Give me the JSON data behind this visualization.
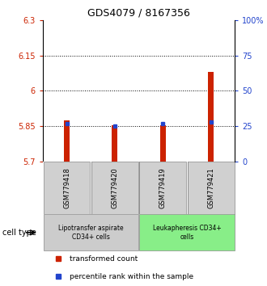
{
  "title": "GDS4079 / 8167356",
  "samples": [
    "GSM779418",
    "GSM779420",
    "GSM779419",
    "GSM779421"
  ],
  "red_values": [
    5.875,
    5.855,
    5.855,
    6.08
  ],
  "blue_percentiles": [
    27,
    25,
    27,
    28
  ],
  "ylim_left": [
    5.7,
    6.3
  ],
  "ylim_right": [
    0,
    100
  ],
  "yticks_left": [
    5.7,
    5.85,
    6.0,
    6.15,
    6.3
  ],
  "ytick_labels_left": [
    "5.7",
    "5.85",
    "6",
    "6.15",
    "6.3"
  ],
  "yticks_right": [
    0,
    25,
    50,
    75,
    100
  ],
  "ytick_labels_right": [
    "0",
    "25",
    "50",
    "75",
    "100%"
  ],
  "grid_lines": [
    5.85,
    6.0,
    6.15
  ],
  "bar_bottom": 5.7,
  "bar_width": 0.12,
  "red_color": "#cc2200",
  "blue_color": "#2244cc",
  "group1_label": "Lipotransfer aspirate\nCD34+ cells",
  "group2_label": "Leukapheresis CD34+\ncells",
  "group1_samples": [
    0,
    1
  ],
  "group2_samples": [
    2,
    3
  ],
  "group1_bg": "#cccccc",
  "group2_bg": "#88ee88",
  "cell_type_label": "cell type",
  "legend_red": "transformed count",
  "legend_blue": "percentile rank within the sample",
  "title_fontsize": 9,
  "label_fontsize": 6,
  "tick_fontsize": 7,
  "legend_fontsize": 6.5
}
